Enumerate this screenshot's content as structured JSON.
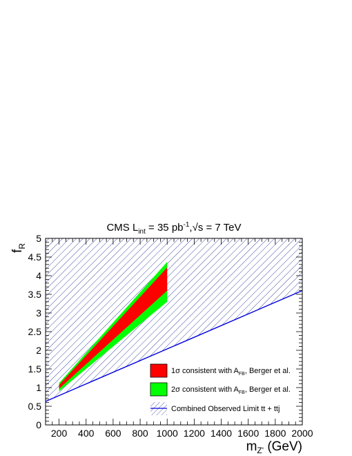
{
  "chart_data": {
    "type": "area",
    "title": {
      "prefix": "CMS  L",
      "prefix_sub": "int",
      "lumi": " = 35 pb",
      "lumi_sup": "-1",
      "sep": ",",
      "sqrt": "√",
      "energy": "s = 7 TeV"
    },
    "xlabel": {
      "main": "m",
      "sub": "Z'",
      "unit": " (GeV)"
    },
    "ylabel": {
      "main": "f",
      "sub": "R"
    },
    "xlim": [
      100,
      2000
    ],
    "ylim": [
      0,
      5
    ],
    "xticks": [
      200,
      400,
      600,
      800,
      1000,
      1200,
      1400,
      1600,
      1800,
      2000
    ],
    "yticks": [
      0,
      0.5,
      1,
      1.5,
      2,
      2.5,
      3,
      3.5,
      4,
      4.5,
      5
    ],
    "xtick_labels": [
      "200",
      "400",
      "600",
      "800",
      "1000",
      "1200",
      "1400",
      "1600",
      "1800",
      "2000"
    ],
    "ytick_labels": [
      "0",
      "0.5",
      "1",
      "1.5",
      "2",
      "2.5",
      "3",
      "3.5",
      "4",
      "4.5",
      "5"
    ],
    "limit_line": {
      "name": "Combined Observed Limit tt + ttj",
      "x": [
        100,
        2000
      ],
      "y": [
        0.63,
        3.6
      ],
      "color": "#0000e0",
      "hatched_region": "above"
    },
    "bands": [
      {
        "name": "2σ consistent with A_FB, Berger et al.",
        "label_pre": "2σ consistent with A",
        "label_sub": "FB",
        "label_post": ", Berger et al.",
        "color": "#00ff00",
        "x": [
          200,
          1000
        ],
        "lower": [
          0.9,
          3.3
        ],
        "upper": [
          1.12,
          4.37
        ]
      },
      {
        "name": "1σ consistent with A_FB, Berger et al.",
        "label_pre": "1σ consistent with A",
        "label_sub": "FB",
        "label_post": ", Berger et al.",
        "color": "#ff0000",
        "x": [
          200,
          1000
        ],
        "lower": [
          0.97,
          3.6
        ],
        "upper": [
          1.07,
          4.22
        ]
      }
    ],
    "legend_position": "bottom-right",
    "grid": false
  }
}
